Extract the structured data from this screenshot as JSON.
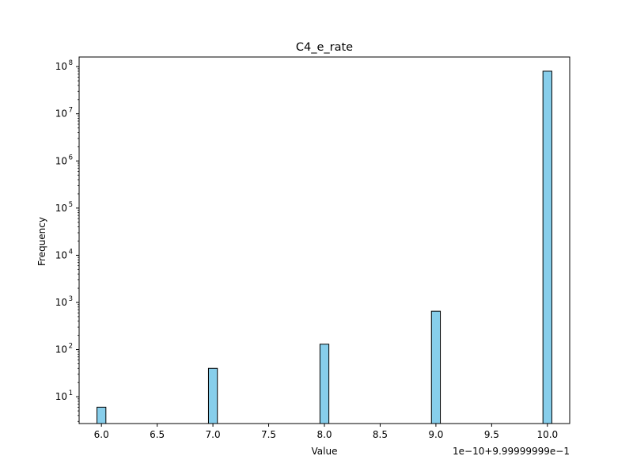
{
  "chart_data": {
    "type": "bar",
    "title": "C4_e_rate",
    "xlabel": "Value",
    "ylabel": "Frequency",
    "x_offset_label": "1e−10+9.99999999e−1",
    "xlim": [
      5.8,
      10.2
    ],
    "ylim": [
      2.7,
      160000000
    ],
    "yscale": "log",
    "grid": false,
    "bar_color": "#87ceeb",
    "edge_color": "#000000",
    "bar_width": 0.08,
    "x_ticks": [
      "6.0",
      "6.5",
      "7.0",
      "7.5",
      "8.0",
      "8.5",
      "9.0",
      "9.5",
      "10.0"
    ],
    "y_ticks": [
      {
        "base": "10",
        "exp": "1"
      },
      {
        "base": "10",
        "exp": "2"
      },
      {
        "base": "10",
        "exp": "3"
      },
      {
        "base": "10",
        "exp": "4"
      },
      {
        "base": "10",
        "exp": "5"
      },
      {
        "base": "10",
        "exp": "6"
      },
      {
        "base": "10",
        "exp": "7"
      },
      {
        "base": "10",
        "exp": "8"
      }
    ],
    "bars": [
      {
        "x": 6.0,
        "value": 6
      },
      {
        "x": 7.0,
        "value": 40
      },
      {
        "x": 8.0,
        "value": 130
      },
      {
        "x": 9.0,
        "value": 650
      },
      {
        "x": 10.0,
        "value": 80000000
      }
    ]
  }
}
